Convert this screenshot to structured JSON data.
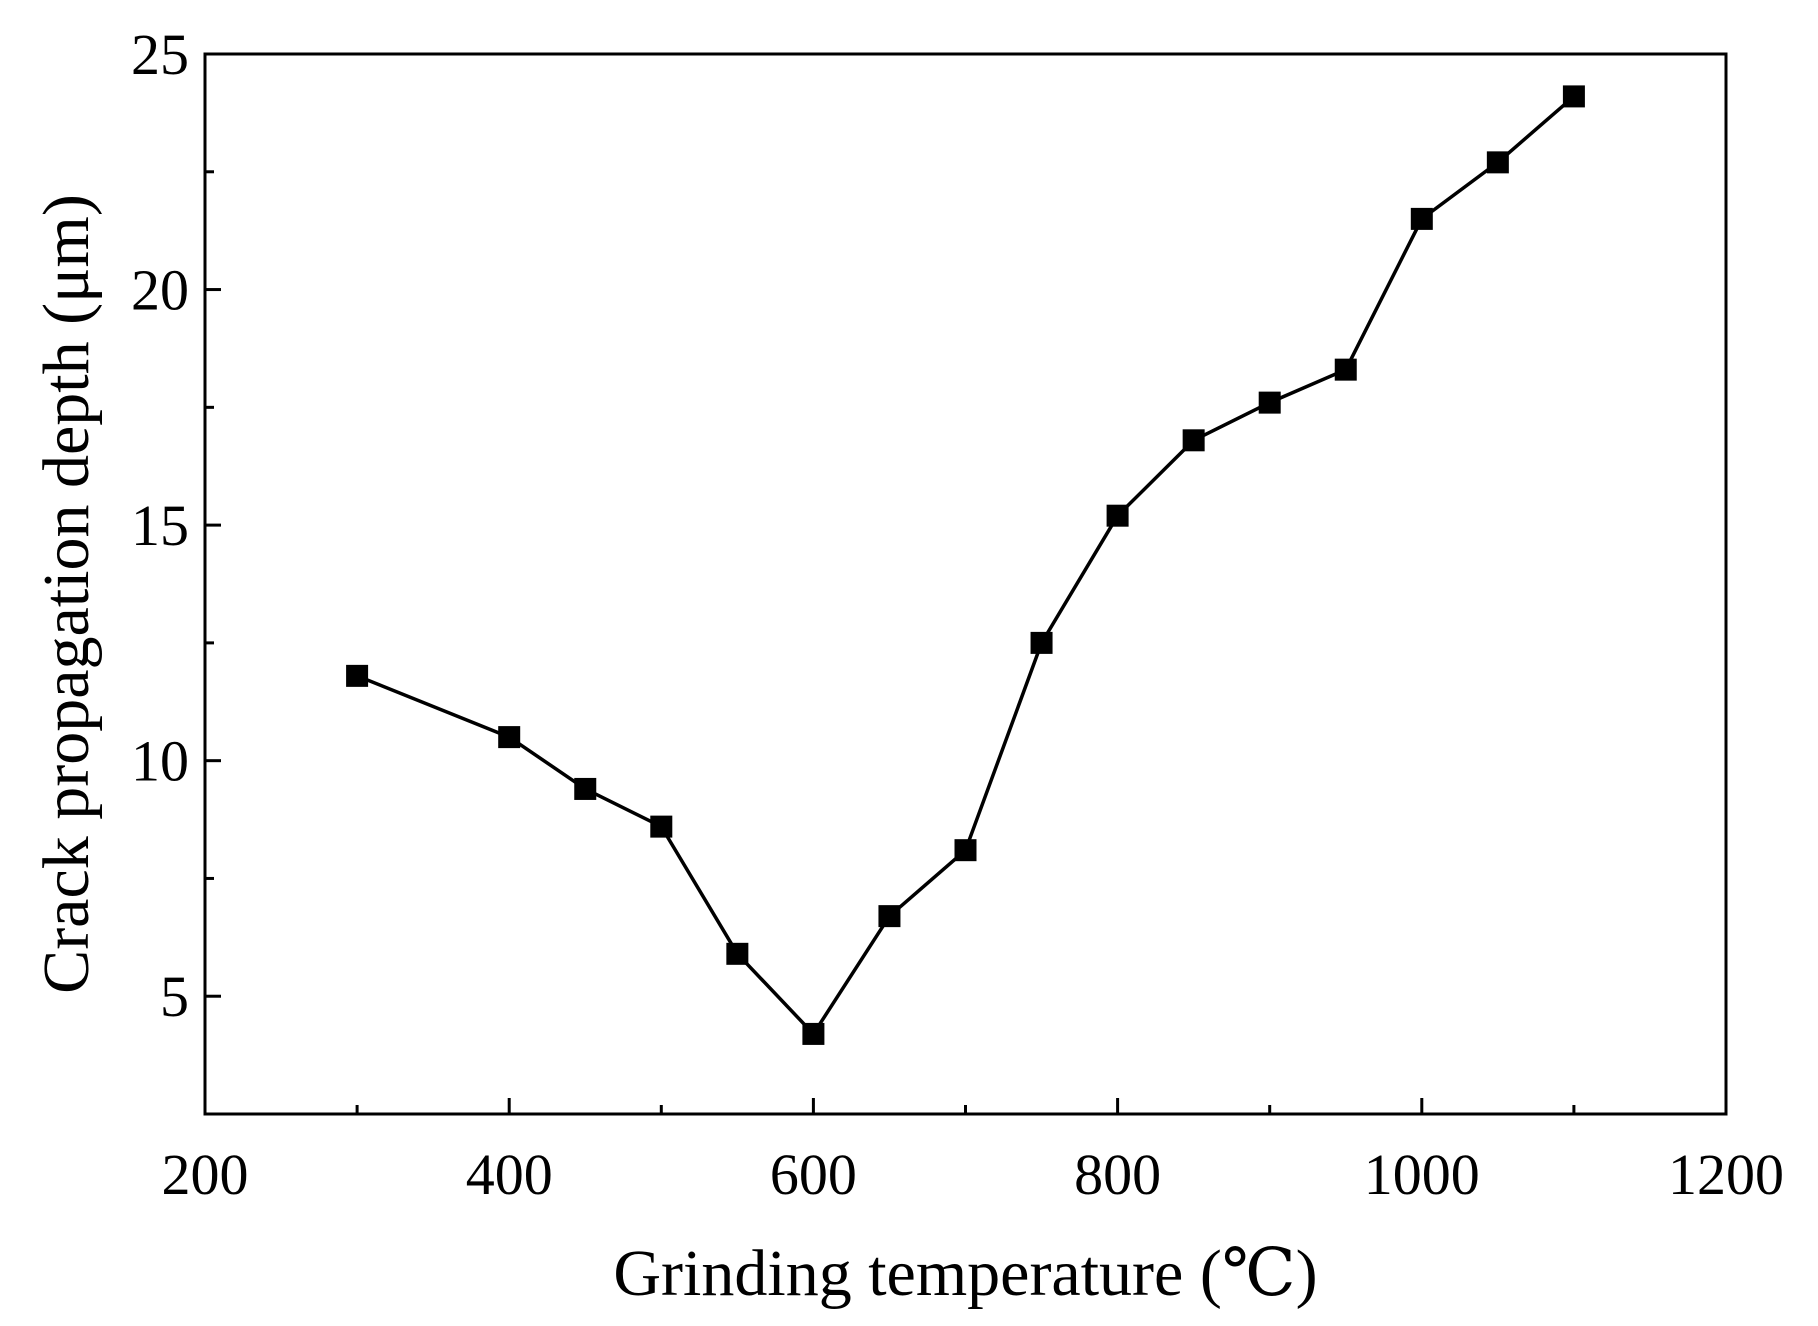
{
  "chart_data": {
    "type": "line",
    "title": "",
    "xlabel": "Grinding temperature (℃)",
    "ylabel": "Crack propagation depth (μm)",
    "xlim": [
      200,
      1200
    ],
    "ylim": [
      2.5,
      25
    ],
    "xticks": [
      200,
      400,
      600,
      800,
      1000,
      1200
    ],
    "yticks": [
      5,
      10,
      15,
      20,
      25
    ],
    "grid": false,
    "series": [
      {
        "name": "Crack propagation depth",
        "marker": "square",
        "color": "#000000",
        "x": [
          300,
          400,
          450,
          500,
          550,
          600,
          650,
          700,
          750,
          800,
          850,
          900,
          950,
          1000,
          1050,
          1100
        ],
        "y": [
          11.8,
          10.5,
          9.4,
          8.6,
          5.9,
          4.2,
          6.7,
          8.1,
          12.5,
          15.2,
          16.8,
          17.6,
          18.3,
          21.5,
          22.7,
          24.1
        ]
      }
    ]
  }
}
